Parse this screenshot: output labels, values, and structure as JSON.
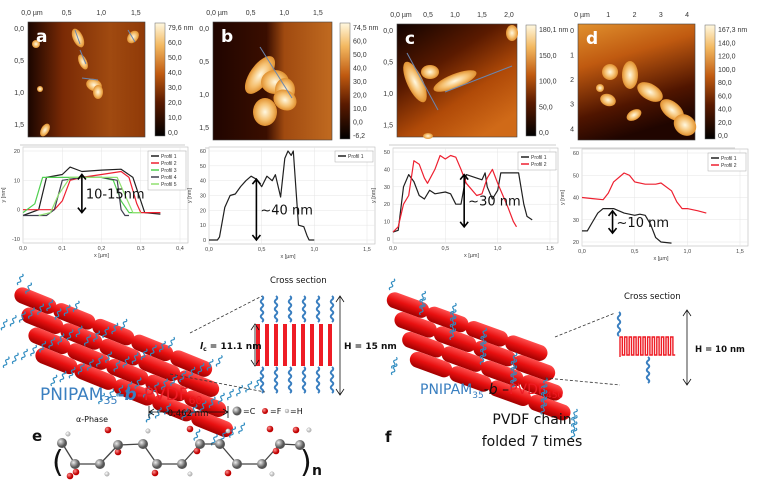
{
  "afm_panels": [
    {
      "label": "a",
      "x_ticks": [
        "0,0 µm",
        "0,5",
        "1,0",
        "1,5"
      ],
      "y_ticks": [
        "0,0",
        "0,5",
        "1,0",
        "1,5"
      ],
      "colorbar": [
        "79,6 nm",
        "60,0",
        "50,0",
        "40,0",
        "30,0",
        "20,0",
        "10,0",
        "0,0"
      ],
      "profile_markers": [
        "1",
        "2",
        "3",
        "4",
        "5"
      ]
    },
    {
      "label": "b",
      "x_ticks": [
        "0,0 µm",
        "0,5",
        "1,0",
        "1,5"
      ],
      "y_ticks": [
        "0,0",
        "0,5",
        "1,0",
        "1,5"
      ],
      "colorbar": [
        "74,5 nm",
        "60,0",
        "50,0",
        "40,0",
        "30,0",
        "20,0",
        "10,0",
        "0,0",
        "-6,2"
      ],
      "profile_markers": [
        "1"
      ]
    },
    {
      "label": "c",
      "x_ticks": [
        "0,0 µm",
        "0,5",
        "1,0",
        "1,5",
        "2,0"
      ],
      "y_ticks": [
        "0,0",
        "0,5",
        "1,0",
        "1,5"
      ],
      "colorbar": [
        "180,1 nm",
        "150,0",
        "100,0",
        "50,0",
        "0,0"
      ],
      "profile_markers": [
        "1",
        "2"
      ]
    },
    {
      "label": "d",
      "x_ticks": [
        "0 µm",
        "1",
        "2",
        "3",
        "4"
      ],
      "y_ticks": [
        "0",
        "1",
        "2",
        "3",
        "4"
      ],
      "colorbar": [
        "167,3 nm",
        "140,0",
        "120,0",
        "100,0",
        "80,0",
        "60,0",
        "40,0",
        "20,0",
        "0,0"
      ],
      "profile_markers": []
    }
  ],
  "colors": {
    "afm_low": "#000000",
    "afm_mid": "#c05a10",
    "afm_high": "#fff8e0",
    "pvdf_red": "#ee1c25",
    "pnipam_blue": "#3a7fc0",
    "carbon": "#808080",
    "fluorine": "#e01010",
    "hydrogen": "#ffffff"
  },
  "chart_data": [
    {
      "type": "line",
      "xlabel": "x [µm]",
      "ylabel": "y [nm]",
      "xlim": [
        0,
        0.4
      ],
      "ylim": [
        -10,
        20
      ],
      "grid": true,
      "legend": "top-right",
      "x_ticks": [
        "0,0",
        "0,1",
        "0,2",
        "0,3",
        "0,4"
      ],
      "y_ticks": [
        "-10",
        "0",
        "10",
        "20"
      ],
      "annotation": {
        "text": "10-15nm",
        "x": 0.15,
        "y_from": -1,
        "y_to": 12
      },
      "series": [
        {
          "name": "Profil 1",
          "color": "#202020",
          "points": [
            [
              0,
              -2
            ],
            [
              0.04,
              0
            ],
            [
              0.06,
              11
            ],
            [
              0.1,
              12
            ],
            [
              0.12,
              14.5
            ],
            [
              0.15,
              13
            ],
            [
              0.2,
              13.5
            ],
            [
              0.25,
              13.8
            ],
            [
              0.28,
              11
            ],
            [
              0.3,
              3
            ],
            [
              0.31,
              -1
            ],
            [
              0.35,
              -1.5
            ]
          ]
        },
        {
          "name": "Profil 2",
          "color": "#ee2030",
          "points": [
            [
              0,
              0
            ],
            [
              0.08,
              0
            ],
            [
              0.1,
              3
            ],
            [
              0.12,
              10
            ],
            [
              0.15,
              11
            ],
            [
              0.2,
              12
            ],
            [
              0.25,
              13
            ],
            [
              0.27,
              11
            ],
            [
              0.29,
              2
            ],
            [
              0.3,
              -1
            ],
            [
              0.35,
              -1
            ]
          ]
        },
        {
          "name": "Profil 3",
          "color": "#50d050",
          "points": [
            [
              0,
              -1
            ],
            [
              0.03,
              2
            ],
            [
              0.05,
              11
            ],
            [
              0.1,
              11
            ],
            [
              0.2,
              11
            ],
            [
              0.23,
              10
            ],
            [
              0.25,
              3
            ],
            [
              0.27,
              -1
            ],
            [
              0.3,
              -1
            ]
          ]
        },
        {
          "name": "Profil 4",
          "color": "#404050",
          "points": [
            [
              0,
              -2
            ],
            [
              0.06,
              -2
            ],
            [
              0.08,
              0
            ],
            [
              0.1,
              10
            ],
            [
              0.15,
              11
            ],
            [
              0.2,
              11
            ],
            [
              0.24,
              10
            ],
            [
              0.25,
              0
            ],
            [
              0.26,
              -2
            ],
            [
              0.27,
              -2
            ]
          ]
        },
        {
          "name": "Profil 5",
          "color": "#90e070",
          "points": [
            [
              0.04,
              -2
            ],
            [
              0.07,
              -1
            ],
            [
              0.09,
              5
            ],
            [
              0.12,
              11
            ],
            [
              0.2,
              11
            ],
            [
              0.24,
              11
            ],
            [
              0.26,
              5
            ],
            [
              0.28,
              -1
            ],
            [
              0.3,
              -1
            ]
          ]
        }
      ]
    },
    {
      "type": "line",
      "xlabel": "x [µm]",
      "ylabel": "y [nm]",
      "xlim": [
        0,
        1.5
      ],
      "ylim": [
        0,
        60
      ],
      "grid": true,
      "legend": "top-right",
      "x_ticks": [
        "0,0",
        "0,5",
        "1,0",
        "1,5"
      ],
      "y_ticks": [
        "0",
        "10",
        "20",
        "30",
        "40",
        "50",
        "60"
      ],
      "annotation": {
        "text": "~40 nm",
        "x": 0.45,
        "y_from": 0,
        "y_to": 41
      },
      "series": [
        {
          "name": "Profil 1",
          "color": "#202020",
          "points": [
            [
              0,
              0
            ],
            [
              0.08,
              0
            ],
            [
              0.1,
              2
            ],
            [
              0.15,
              22
            ],
            [
              0.2,
              30
            ],
            [
              0.25,
              31
            ],
            [
              0.3,
              36
            ],
            [
              0.35,
              40
            ],
            [
              0.4,
              43
            ],
            [
              0.45,
              41
            ],
            [
              0.5,
              36
            ],
            [
              0.55,
              43
            ],
            [
              0.6,
              40
            ],
            [
              0.63,
              44
            ],
            [
              0.68,
              29
            ],
            [
              0.72,
              55
            ],
            [
              0.75,
              60
            ],
            [
              0.78,
              57
            ],
            [
              0.8,
              60
            ],
            [
              0.83,
              30
            ],
            [
              0.85,
              10
            ],
            [
              0.9,
              9
            ],
            [
              0.93,
              3
            ],
            [
              0.95,
              0
            ],
            [
              1.0,
              0
            ]
          ]
        }
      ]
    },
    {
      "type": "line",
      "xlabel": "x [µm]",
      "ylabel": "y [nm]",
      "xlim": [
        0,
        1.5
      ],
      "ylim": [
        0,
        50
      ],
      "grid": true,
      "legend": "top-right",
      "x_ticks": [
        "0,0",
        "0,5",
        "1,0",
        "1,5"
      ],
      "y_ticks": [
        "0",
        "10",
        "20",
        "30",
        "40",
        "50"
      ],
      "annotation": {
        "text": "~30 nm",
        "x": 0.68,
        "y_from": 7,
        "y_to": 37
      },
      "series": [
        {
          "name": "Profil 1",
          "color": "#202020",
          "points": [
            [
              0,
              4
            ],
            [
              0.05,
              5
            ],
            [
              0.1,
              30
            ],
            [
              0.15,
              37
            ],
            [
              0.2,
              33
            ],
            [
              0.25,
              25
            ],
            [
              0.3,
              23
            ],
            [
              0.35,
              28
            ],
            [
              0.4,
              26
            ],
            [
              0.5,
              27
            ],
            [
              0.55,
              26
            ],
            [
              0.6,
              20
            ],
            [
              0.65,
              20
            ],
            [
              0.7,
              37
            ],
            [
              0.8,
              35
            ],
            [
              0.85,
              34
            ],
            [
              0.88,
              38
            ],
            [
              0.9,
              30
            ],
            [
              0.95,
              23
            ],
            [
              1.0,
              28
            ],
            [
              1.03,
              38
            ],
            [
              1.1,
              38
            ],
            [
              1.2,
              38
            ],
            [
              1.25,
              20
            ],
            [
              1.28,
              13
            ],
            [
              1.33,
              11
            ]
          ]
        },
        {
          "name": "Profil 2",
          "color": "#ee2030",
          "points": [
            [
              0,
              4
            ],
            [
              0.05,
              7
            ],
            [
              0.1,
              20
            ],
            [
              0.15,
              25
            ],
            [
              0.2,
              45
            ],
            [
              0.25,
              43
            ],
            [
              0.3,
              35
            ],
            [
              0.33,
              32
            ],
            [
              0.4,
              40
            ],
            [
              0.45,
              48
            ],
            [
              0.5,
              46
            ],
            [
              0.55,
              48
            ],
            [
              0.6,
              47
            ],
            [
              0.65,
              40
            ],
            [
              0.7,
              32
            ],
            [
              0.8,
              25
            ],
            [
              0.85,
              26
            ],
            [
              0.9,
              35
            ],
            [
              0.95,
              40
            ],
            [
              1.0,
              32
            ],
            [
              1.05,
              25
            ],
            [
              1.1,
              18
            ],
            [
              1.15,
              10
            ],
            [
              1.18,
              7
            ]
          ]
        }
      ]
    },
    {
      "type": "line",
      "xlabel": "x [µm]",
      "ylabel": "y [nm]",
      "xlim": [
        0,
        1.5
      ],
      "ylim": [
        20,
        60
      ],
      "grid": true,
      "legend": "top-right",
      "x_ticks": [
        "0,0",
        "0,5",
        "1,0",
        "1,5"
      ],
      "y_ticks": [
        "20",
        "30",
        "40",
        "50",
        "60"
      ],
      "annotation": {
        "text": "~10 nm",
        "x": 0.29,
        "y_from": 24,
        "y_to": 34
      },
      "series": [
        {
          "name": "Profil 1",
          "color": "#202020",
          "points": [
            [
              0,
              25
            ],
            [
              0.05,
              25
            ],
            [
              0.1,
              29
            ],
            [
              0.15,
              33
            ],
            [
              0.2,
              35
            ],
            [
              0.3,
              35
            ],
            [
              0.4,
              33
            ],
            [
              0.5,
              32
            ],
            [
              0.55,
              32.5
            ],
            [
              0.6,
              32
            ],
            [
              0.65,
              28
            ],
            [
              0.7,
              22
            ],
            [
              0.75,
              20
            ],
            [
              0.85,
              19.5
            ]
          ]
        },
        {
          "name": "Profil 2",
          "color": "#ee2030",
          "points": [
            [
              0,
              40
            ],
            [
              0.1,
              39.5
            ],
            [
              0.2,
              39
            ],
            [
              0.25,
              42
            ],
            [
              0.3,
              47
            ],
            [
              0.4,
              51
            ],
            [
              0.45,
              50
            ],
            [
              0.5,
              47
            ],
            [
              0.6,
              46
            ],
            [
              0.7,
              46
            ],
            [
              0.75,
              46.5
            ],
            [
              0.85,
              43
            ],
            [
              0.9,
              38
            ],
            [
              0.95,
              35
            ],
            [
              1.0,
              35
            ],
            [
              1.1,
              34
            ],
            [
              1.18,
              33
            ]
          ]
        }
      ]
    }
  ],
  "schematic_left": {
    "cross_section": "Cross section",
    "lc_symbol": "l",
    "lc_sub": "c",
    "lc_value": " = 11.1 nm",
    "height": "H = 15 nm",
    "polymer": {
      "a": "PNIPAM",
      "a_sub": "35",
      "sep1": "-",
      "b": "b",
      "sep2": "-",
      "c": "PVDF",
      "c_sub": "60"
    }
  },
  "schematic_right": {
    "cross_section": "Cross section",
    "height": "H = 10 nm",
    "polymer": {
      "a": "PNIPAM",
      "a_sub": "35",
      "sep1": "-",
      "b": "b",
      "sep2": " –",
      "c": "PVDF",
      "c_sub": "450"
    },
    "caption_line1": "PVDF chain",
    "caption_line2": "folded 7 times",
    "label": "f"
  },
  "molecule": {
    "label": "e",
    "phase": "α-Phase",
    "spacing": "0.462 nm",
    "legend": [
      "=C",
      "=F",
      "=H"
    ],
    "repeat": "n",
    "paren_open": "(",
    "paren_close": ")"
  }
}
